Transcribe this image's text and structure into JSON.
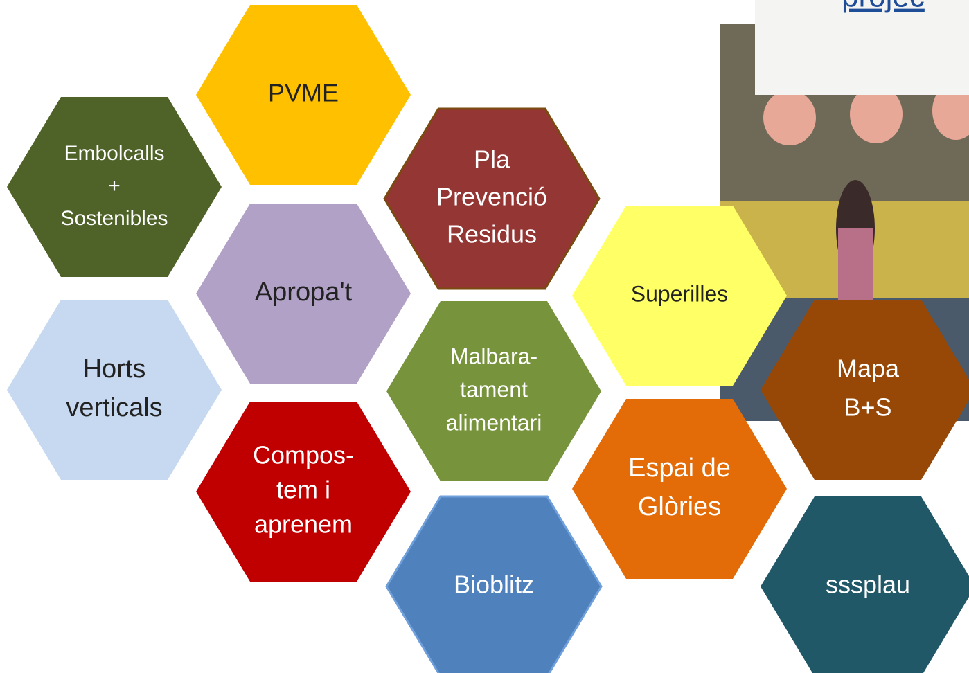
{
  "header": {
    "text": "projec"
  },
  "nodes": [
    {
      "lines": [
        "PVME"
      ],
      "color": "#FFC000"
    },
    {
      "lines": [
        "Embolcalls",
        "+",
        "Sostenibles"
      ],
      "color": "#4F6228"
    },
    {
      "lines": [
        "Pla",
        "Prevenció",
        "Residus"
      ],
      "color": "#943634"
    },
    {
      "lines": [
        "Apropa't"
      ],
      "color": "#B2A1C7"
    },
    {
      "lines": [
        "Superilles"
      ],
      "color": "#FFFF66"
    },
    {
      "lines": [
        "Horts",
        "verticals"
      ],
      "color": "#C6D9F0"
    },
    {
      "lines": [
        "Malbara-",
        "tament",
        "alimentari"
      ],
      "color": "#77933C"
    },
    {
      "lines": [
        "Mapa",
        "B+S"
      ],
      "color": "#974806"
    },
    {
      "lines": [
        "Compos-",
        "tem i",
        "aprenem"
      ],
      "color": "#C00000"
    },
    {
      "lines": [
        "Espai de",
        "Glòries"
      ],
      "color": "#E36C09"
    },
    {
      "lines": [
        "Bioblitz"
      ],
      "color": "#4F81BD"
    },
    {
      "lines": [
        "sssplau"
      ],
      "color": "#215868"
    }
  ]
}
